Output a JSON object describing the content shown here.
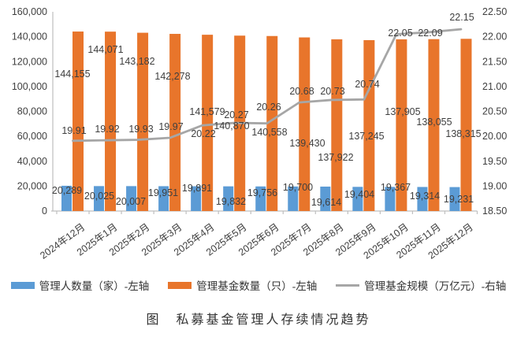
{
  "chart_data": {
    "type": "combo-bar-line",
    "title": "图　私募基金管理人存续情况趋势",
    "categories": [
      "2024年12月",
      "2025年1月",
      "2025年2月",
      "2025年3月",
      "2025年4月",
      "2025年5月",
      "2025年6月",
      "2025年7月",
      "2025年8月",
      "2025年9月",
      "2025年10月",
      "2025年11月",
      "2025年12月"
    ],
    "series": [
      {
        "name": "管理人数量（家）-左轴",
        "type": "bar",
        "axis": "left",
        "color": "#5B9BD5",
        "values": [
          20289,
          20025,
          20007,
          19951,
          19891,
          19832,
          19756,
          19700,
          19614,
          19404,
          19367,
          19314,
          19231
        ],
        "labels": [
          "20,289",
          "20,025",
          "20,007",
          "19,951",
          "19,891",
          "19,832",
          "19,756",
          "19,700",
          "19,614",
          "19,404",
          "19,367",
          "19,314",
          "19,231"
        ]
      },
      {
        "name": "管理基金数量（只）-左轴",
        "type": "bar",
        "axis": "left",
        "color": "#E8752B",
        "values": [
          144155,
          144071,
          143182,
          142278,
          141579,
          140870,
          140558,
          139430,
          137922,
          137245,
          137905,
          138055,
          138315
        ],
        "labels": [
          "144,155",
          "144,071",
          "143,182",
          "142,278",
          "141,579",
          "140,870",
          "140,558",
          "139,430",
          "137,922",
          "137,245",
          "137,905",
          "138,055",
          "138,315"
        ]
      },
      {
        "name": "管理基金规模（万亿元）-右轴",
        "type": "line",
        "axis": "right",
        "color": "#A6A6A6",
        "values": [
          19.91,
          19.92,
          19.93,
          19.97,
          20.22,
          20.27,
          20.26,
          20.68,
          20.73,
          20.74,
          22.05,
          22.09,
          22.15
        ],
        "labels": [
          "19.91",
          "19.92",
          "19.93",
          "19.97",
          "20.22",
          "20.27",
          "20.26",
          "20.68",
          "20.73",
          "20.74",
          "22.05",
          "22.09",
          "22.15"
        ]
      }
    ],
    "left_axis": {
      "min": 0,
      "max": 160000,
      "step": 20000,
      "tick_labels": [
        "0",
        "20,000",
        "40,000",
        "60,000",
        "80,000",
        "100,000",
        "120,000",
        "140,000",
        "160,000"
      ]
    },
    "right_axis": {
      "min": 18.5,
      "max": 22.5,
      "step": 0.5,
      "tick_labels": [
        "18.50",
        "19.00",
        "19.50",
        "20.00",
        "20.50",
        "21.00",
        "21.50",
        "22.00",
        "22.50"
      ]
    },
    "grid": false,
    "legend_position": "bottom",
    "label_color": "#3F3F3F",
    "axis_color": "#BFBFBF"
  }
}
